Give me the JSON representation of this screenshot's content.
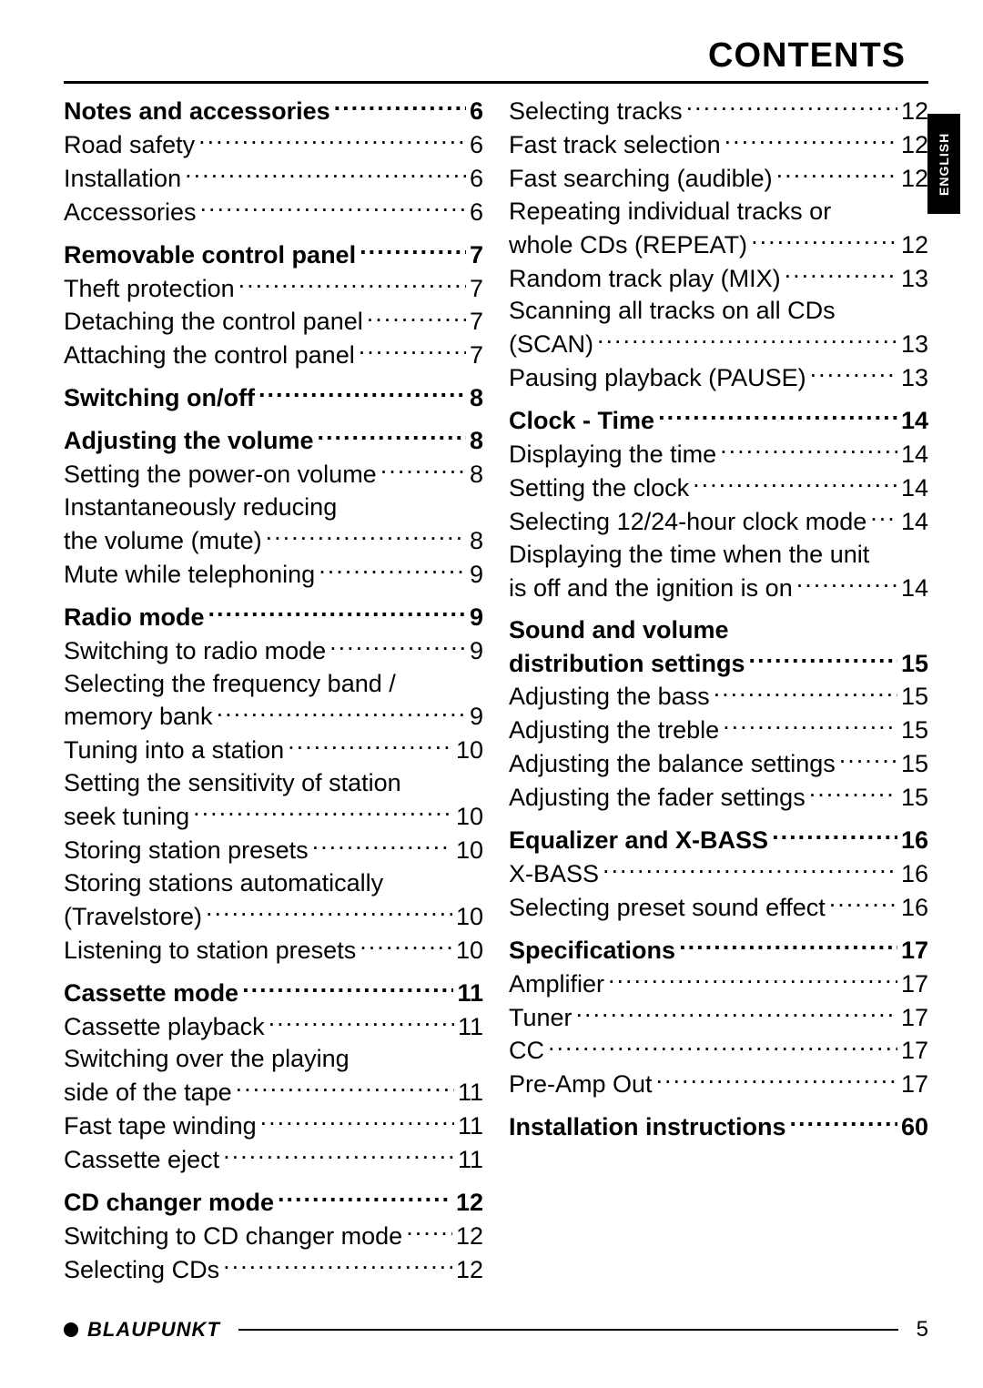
{
  "header": {
    "title": "CONTENTS"
  },
  "language_tab": "ENGLISH",
  "footer": {
    "brand": "BLAUPUNKT",
    "page_number": "5"
  },
  "columns": {
    "left": [
      {
        "heading": {
          "title": "Notes and accessories",
          "page": "6"
        },
        "items": [
          {
            "title": "Road safety",
            "page": "6"
          },
          {
            "title": "Installation",
            "page": "6"
          },
          {
            "title": "Accessories",
            "page": "6"
          }
        ]
      },
      {
        "heading": {
          "title": "Removable control panel",
          "page": "7"
        },
        "items": [
          {
            "title": "Theft protection",
            "page": "7"
          },
          {
            "title": "Detaching the control panel",
            "page": "7"
          },
          {
            "title": "Attaching the control panel",
            "page": "7"
          }
        ]
      },
      {
        "heading": {
          "title": "Switching on/off",
          "page": "8"
        },
        "items": []
      },
      {
        "heading": {
          "title": "Adjusting the volume",
          "page": "8"
        },
        "items": [
          {
            "title": "Setting the power-on volume",
            "page": "8"
          },
          {
            "title_cont": "Instantaneously reducing",
            "title": "the volume (mute)",
            "page": "8"
          },
          {
            "title": "Mute while telephoning",
            "page": "9"
          }
        ]
      },
      {
        "heading": {
          "title": "Radio mode",
          "page": "9"
        },
        "items": [
          {
            "title": "Switching to radio mode",
            "page": "9"
          },
          {
            "title_cont": "Selecting the frequency band /",
            "title": "memory bank",
            "page": "9"
          },
          {
            "title": "Tuning into a station",
            "page": "10"
          },
          {
            "title_cont": "Setting the sensitivity of station",
            "title": "seek tuning",
            "page": "10"
          },
          {
            "title": "Storing station presets",
            "page": "10"
          },
          {
            "title_cont": "Storing stations automatically",
            "title": "(Travelstore)",
            "page": "10"
          },
          {
            "title": "Listening to station presets",
            "page": "10"
          }
        ]
      },
      {
        "heading": {
          "title": "Cassette mode",
          "page": "11"
        },
        "items": [
          {
            "title": "Cassette playback",
            "page": "11"
          },
          {
            "title_cont": "Switching over the playing",
            "title": "side of the tape",
            "page": "11"
          },
          {
            "title": "Fast tape winding",
            "page": "11"
          },
          {
            "title": "Cassette eject",
            "page": "11"
          }
        ]
      },
      {
        "heading": {
          "title": "CD changer mode",
          "page": "12"
        },
        "items": [
          {
            "title": "Switching to CD changer mode",
            "page": "12"
          },
          {
            "title": "Selecting CDs",
            "page": "12"
          }
        ]
      }
    ],
    "right": [
      {
        "heading": null,
        "items": [
          {
            "title": "Selecting tracks",
            "page": "12"
          },
          {
            "title": "Fast track selection",
            "page": "12"
          },
          {
            "title": "Fast searching (audible)",
            "page": "12"
          },
          {
            "title_cont": "Repeating individual tracks or",
            "title": "whole CDs (REPEAT)",
            "page": "12"
          },
          {
            "title": "Random track play (MIX)",
            "page": "13"
          },
          {
            "title_cont": "Scanning all tracks on all CDs",
            "title": "(SCAN)",
            "page": "13"
          },
          {
            "title": "Pausing playback (PAUSE)",
            "page": "13"
          }
        ]
      },
      {
        "heading": {
          "title": "Clock - Time",
          "page": "14"
        },
        "items": [
          {
            "title": "Displaying the time",
            "page": "14"
          },
          {
            "title": "Setting the clock",
            "page": "14"
          },
          {
            "title": "Selecting 12/24-hour clock mode",
            "page": "14"
          },
          {
            "title_cont": "Displaying the time when the unit",
            "title": "is off and the ignition is on",
            "page": "14"
          }
        ]
      },
      {
        "heading": {
          "title_cont": "Sound and volume",
          "title": "distribution settings",
          "page": "15"
        },
        "items": [
          {
            "title": "Adjusting the bass",
            "page": "15"
          },
          {
            "title": "Adjusting the treble",
            "page": "15"
          },
          {
            "title": "Adjusting the balance settings",
            "page": "15"
          },
          {
            "title": "Adjusting the fader settings",
            "page": "15"
          }
        ]
      },
      {
        "heading": {
          "title": "Equalizer and X-BASS",
          "page": "16"
        },
        "items": [
          {
            "title": "X-BASS",
            "page": "16"
          },
          {
            "title": "Selecting preset sound effect",
            "page": "16"
          }
        ]
      },
      {
        "heading": {
          "title": "Specifications",
          "page": "17"
        },
        "items": [
          {
            "title": "Amplifier",
            "page": "17"
          },
          {
            "title": "Tuner",
            "page": "17"
          },
          {
            "title": "CC",
            "page": "17"
          },
          {
            "title": "Pre-Amp Out",
            "page": "17"
          }
        ]
      },
      {
        "heading": {
          "title": "Installation instructions",
          "page": "60"
        },
        "items": []
      }
    ]
  }
}
